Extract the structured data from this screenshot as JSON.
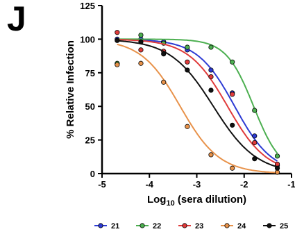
{
  "panel_label": "J",
  "chart_data": {
    "type": "scatter",
    "title": "",
    "xlabel": {
      "main": "Log",
      "sub": "10",
      "rest": " (sera dilution)"
    },
    "ylabel": "% Relative Infection",
    "xlim": [
      -5,
      -1
    ],
    "ylim": [
      0,
      125
    ],
    "xticks": [
      -5,
      -4,
      -3,
      -2,
      -1
    ],
    "xtick_labels": [
      "-5",
      "-4",
      "-3",
      "-2",
      "-1"
    ],
    "yticks": [
      0,
      25,
      50,
      75,
      100,
      125
    ],
    "ytick_labels": [
      "0",
      "25",
      "50",
      "75",
      "100",
      "125"
    ],
    "grid": false,
    "legend_position": "bottom",
    "series": [
      {
        "name": "21",
        "color": "#2d3bd4",
        "points": [
          [
            -4.68,
            100
          ],
          [
            -4.18,
            100
          ],
          [
            -3.7,
            98
          ],
          [
            -3.2,
            92
          ],
          [
            -2.7,
            77
          ],
          [
            -2.25,
            60
          ],
          [
            -1.78,
            28
          ],
          [
            -1.3,
            6
          ]
        ],
        "curve": {
          "top": 100,
          "bottom": 0,
          "logic50": -2.2,
          "hill": 1.1
        }
      },
      {
        "name": "22",
        "color": "#4caf50",
        "points": [
          [
            -4.68,
            82
          ],
          [
            -4.18,
            103
          ],
          [
            -3.7,
            97
          ],
          [
            -3.2,
            94
          ],
          [
            -2.7,
            94
          ],
          [
            -2.25,
            83
          ],
          [
            -1.78,
            47
          ],
          [
            -1.3,
            13
          ]
        ],
        "curve": {
          "top": 100,
          "bottom": 0,
          "logic50": -1.8,
          "hill": 1.5
        }
      },
      {
        "name": "23",
        "color": "#e03b3b",
        "points": [
          [
            -4.68,
            105
          ],
          [
            -4.18,
            92
          ],
          [
            -3.7,
            91
          ],
          [
            -3.2,
            83
          ],
          [
            -2.7,
            72
          ],
          [
            -2.25,
            59
          ],
          [
            -1.78,
            23
          ],
          [
            -1.3,
            7
          ]
        ],
        "curve": {
          "top": 100,
          "bottom": 0,
          "logic50": -2.35,
          "hill": 1.05
        }
      },
      {
        "name": "24",
        "color": "#e8924a",
        "points": [
          [
            -4.68,
            81
          ],
          [
            -4.18,
            82
          ],
          [
            -3.7,
            68
          ],
          [
            -3.2,
            35
          ],
          [
            -2.7,
            14
          ],
          [
            -2.25,
            4
          ],
          [
            -1.3,
            1
          ]
        ],
        "curve": {
          "top": 100,
          "bottom": 0,
          "logic50": -3.35,
          "hill": 1.05
        }
      },
      {
        "name": "25",
        "color": "#111111",
        "points": [
          [
            -4.68,
            99
          ],
          [
            -4.18,
            98
          ],
          [
            -3.7,
            89
          ],
          [
            -3.2,
            77
          ],
          [
            -2.7,
            62
          ],
          [
            -2.25,
            36
          ],
          [
            -1.78,
            11
          ],
          [
            -1.3,
            4
          ]
        ],
        "curve": {
          "top": 100,
          "bottom": 0,
          "logic50": -2.65,
          "hill": 0.95
        }
      }
    ]
  }
}
